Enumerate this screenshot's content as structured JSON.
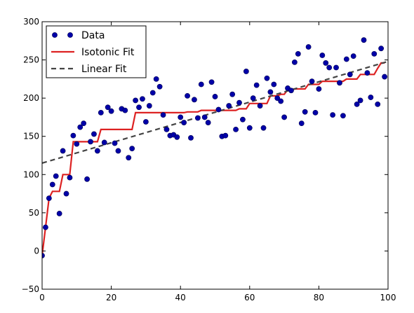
{
  "chart_data": {
    "type": "scatter",
    "title": "",
    "xlabel": "",
    "ylabel": "",
    "xlim": [
      0,
      100
    ],
    "ylim": [
      -50,
      300
    ],
    "xticks": [
      0,
      20,
      40,
      60,
      80,
      100
    ],
    "yticks": [
      -50,
      0,
      50,
      100,
      150,
      200,
      250,
      300
    ],
    "grid": false,
    "legend_position": "top-left",
    "legend": [
      {
        "label": "Data",
        "style": "markers",
        "color": "#0000a8"
      },
      {
        "label": "Isotonic Fit",
        "style": "solid-line",
        "color": "#dd2222"
      },
      {
        "label": "Linear Fit",
        "style": "dashed-line",
        "color": "#444444"
      }
    ],
    "series": [
      {
        "name": "Data",
        "kind": "scatter",
        "color": "#0000a8",
        "x": [
          0,
          1,
          2,
          3,
          4,
          5,
          6,
          7,
          8,
          9,
          10,
          11,
          12,
          13,
          14,
          15,
          16,
          17,
          18,
          19,
          20,
          21,
          22,
          23,
          24,
          25,
          26,
          27,
          28,
          29,
          30,
          31,
          32,
          33,
          34,
          35,
          36,
          37,
          38,
          39,
          40,
          41,
          42,
          43,
          44,
          45,
          46,
          47,
          48,
          49,
          50,
          51,
          52,
          53,
          54,
          55,
          56,
          57,
          58,
          59,
          60,
          61,
          62,
          63,
          64,
          65,
          66,
          67,
          68,
          69,
          70,
          71,
          72,
          73,
          74,
          75,
          76,
          77,
          78,
          79,
          80,
          81,
          82,
          83,
          84,
          85,
          86,
          87,
          88,
          89,
          90,
          91,
          92,
          93,
          94,
          95,
          96,
          97,
          98,
          99
        ],
        "y": [
          -6,
          31,
          69,
          87,
          98,
          49,
          131,
          75,
          96,
          151,
          140,
          162,
          167,
          94,
          143,
          153,
          131,
          181,
          142,
          188,
          183,
          141,
          131,
          186,
          184,
          122,
          134,
          197,
          188,
          199,
          169,
          190,
          207,
          225,
          215,
          178,
          159,
          151,
          152,
          149,
          175,
          168,
          203,
          148,
          198,
          174,
          218,
          175,
          168,
          221,
          202,
          185,
          150,
          151,
          190,
          205,
          159,
          194,
          172,
          235,
          161,
          200,
          217,
          190,
          161,
          226,
          208,
          218,
          200,
          196,
          175,
          213,
          210,
          247,
          258,
          167,
          182,
          267,
          222,
          181,
          212,
          256,
          246,
          240,
          178,
          240,
          220,
          177,
          251,
          231,
          255,
          192,
          197,
          276,
          233,
          201,
          258,
          192,
          265,
          228
        ]
      },
      {
        "name": "Isotonic Fit",
        "kind": "step-line",
        "color": "#dd2222",
        "x": [
          0,
          1,
          2,
          3,
          4,
          5,
          6,
          7,
          8,
          9,
          10,
          11,
          12,
          13,
          14,
          15,
          16,
          17,
          18,
          19,
          20,
          21,
          22,
          23,
          24,
          25,
          26,
          27,
          28,
          29,
          30,
          31,
          32,
          33,
          34,
          35,
          36,
          37,
          38,
          39,
          40,
          41,
          42,
          43,
          44,
          45,
          46,
          47,
          48,
          49,
          50,
          51,
          52,
          53,
          54,
          55,
          56,
          57,
          58,
          59,
          60,
          61,
          62,
          63,
          64,
          65,
          66,
          67,
          68,
          69,
          70,
          71,
          72,
          73,
          74,
          75,
          76,
          77,
          78,
          79,
          80,
          81,
          82,
          83,
          84,
          85,
          86,
          87,
          88,
          89,
          90,
          91,
          92,
          93,
          94,
          95,
          96,
          97,
          98,
          99
        ],
        "y": [
          -6,
          31,
          69,
          78,
          78,
          78,
          100,
          100,
          100,
          143,
          143,
          143,
          143,
          143,
          143,
          143,
          143,
          159,
          159,
          159,
          159,
          159,
          159,
          159,
          159,
          159,
          159,
          181,
          181,
          181,
          181,
          181,
          181,
          181,
          181,
          181,
          181,
          181,
          181,
          181,
          181,
          181,
          182,
          182,
          182,
          182,
          184,
          184,
          184,
          184,
          184,
          184,
          184,
          184,
          184,
          184,
          184,
          186,
          186,
          186,
          193,
          193,
          193,
          193,
          193,
          193,
          203,
          203,
          203,
          205,
          205,
          211,
          211,
          212,
          212,
          212,
          212,
          218,
          218,
          218,
          218,
          222,
          222,
          222,
          222,
          222,
          222,
          222,
          225,
          225,
          225,
          225,
          231,
          231,
          231,
          231,
          231,
          239,
          246,
          246
        ]
      },
      {
        "name": "Linear Fit",
        "kind": "dashed-line",
        "color": "#444444",
        "x": [
          0,
          100
        ],
        "y": [
          115,
          248
        ]
      }
    ]
  }
}
